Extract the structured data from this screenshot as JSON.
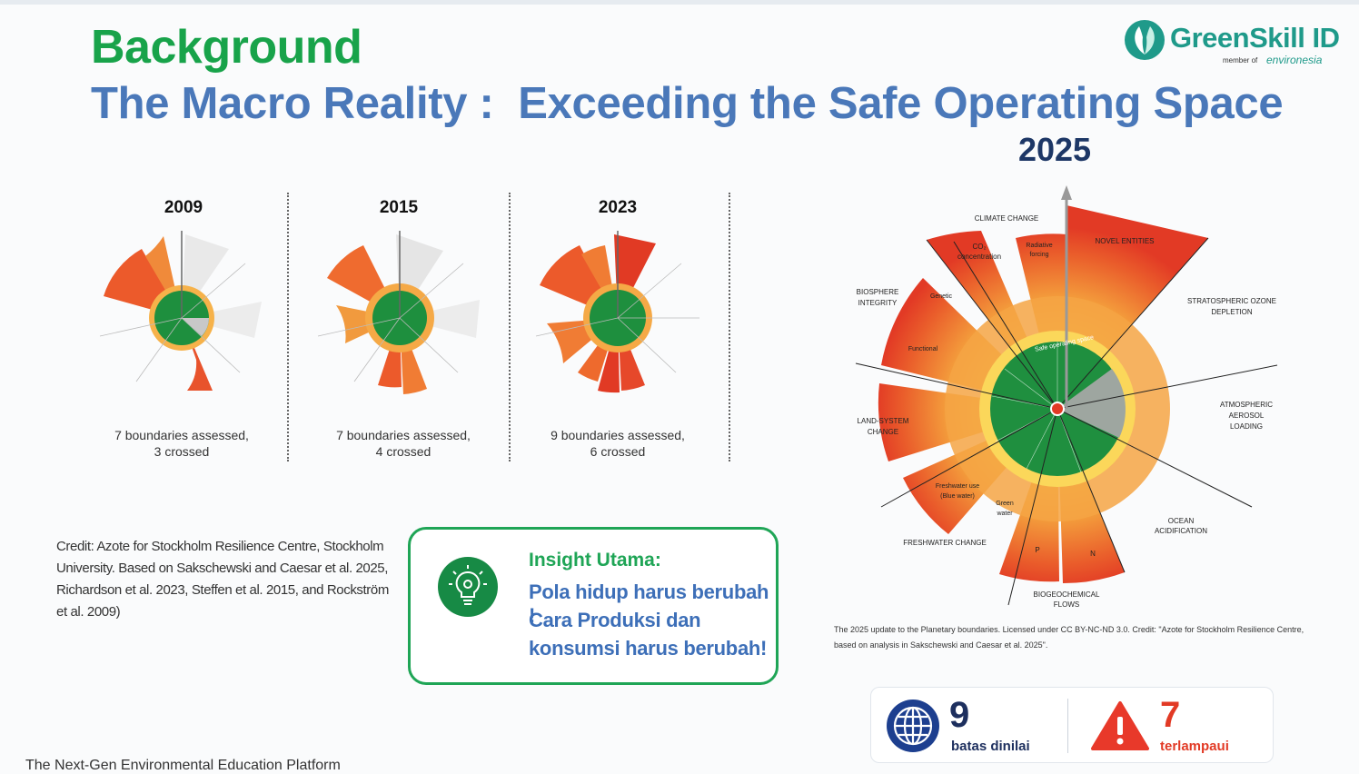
{
  "header": {
    "title": "Background",
    "subtitle": "The Macro Reality :  Exceeding the Safe Operating Space"
  },
  "logo": {
    "name": "GreenSkill ID",
    "member_prefix": "member of",
    "member_org": "environesia"
  },
  "mini_charts": [
    {
      "year": "2009",
      "caption_line1": "7 boundaries assessed,",
      "caption_line2": "3 crossed"
    },
    {
      "year": "2015",
      "caption_line1": "7 boundaries assessed,",
      "caption_line2": "4 crossed"
    },
    {
      "year": "2023",
      "caption_line1": "9 boundaries assessed,",
      "caption_line2": "6 crossed"
    }
  ],
  "credit": "Credit: Azote for Stockholm Resilience Centre, Stockholm University. Based on Sakschewski and Caesar et al. 2025, Richardson et al. 2023, Steffen et al. 2015, and Rockström et al. 2009)",
  "insight": {
    "title": "Insight Utama:",
    "line1": "Pola hidup harus berubah !",
    "line2": "Cara Produksi dan",
    "line3": "konsumsi harus berubah!",
    "icon": "lightbulb-gear-icon"
  },
  "big_chart": {
    "year": "2025",
    "labels": {
      "climate": "CLIMATE CHANGE",
      "co2": "CO₂",
      "co2b": "concentration",
      "radiative": "Radiative",
      "radiativeb": "forcing",
      "novel": "NOVEL ENTITIES",
      "ozone1": "STRATOSPHERIC OZONE",
      "ozone2": "DEPLETION",
      "aerosol1": "ATMOSPHERIC",
      "aerosol2": "AEROSOL",
      "aerosol3": "LOADING",
      "ocean1": "OCEAN",
      "ocean2": "ACIDIFICATION",
      "bio1": "BIOGEOCHEMICAL",
      "bio2": "FLOWS",
      "p": "P",
      "n": "N",
      "fresh": "FRESHWATER CHANGE",
      "blue1": "Freshwater use",
      "blue2": "(Blue water)",
      "green1": "Green",
      "green2": "water",
      "land1": "LAND-SYSTEM",
      "land2": "CHANGE",
      "biosphere1": "BIOSPHERE",
      "biosphere2": "INTEGRITY",
      "genetic": "Genetic",
      "functional": "Functional",
      "safe": "Safe operating space"
    },
    "credit": "The 2025 update to the Planetary boundaries. Licensed under CC BY-NC-ND 3.0. Credit: \"Azote for Stockholm Resilience Centre, based on analysis in Sakschewski and Caesar et al. 2025\"."
  },
  "stats": {
    "assessed_value": "9",
    "assessed_label": "batas dinilai",
    "crossed_value": "7",
    "crossed_label": "terlampaui"
  },
  "footer": "The Next-Gen Environmental Education Platform",
  "colors": {
    "green_title": "#18a34a",
    "blue_title": "#4a78b9",
    "safe_green": "#1f8f3f",
    "danger_red": "#e23a25",
    "brand_teal": "#1f9a8a"
  }
}
